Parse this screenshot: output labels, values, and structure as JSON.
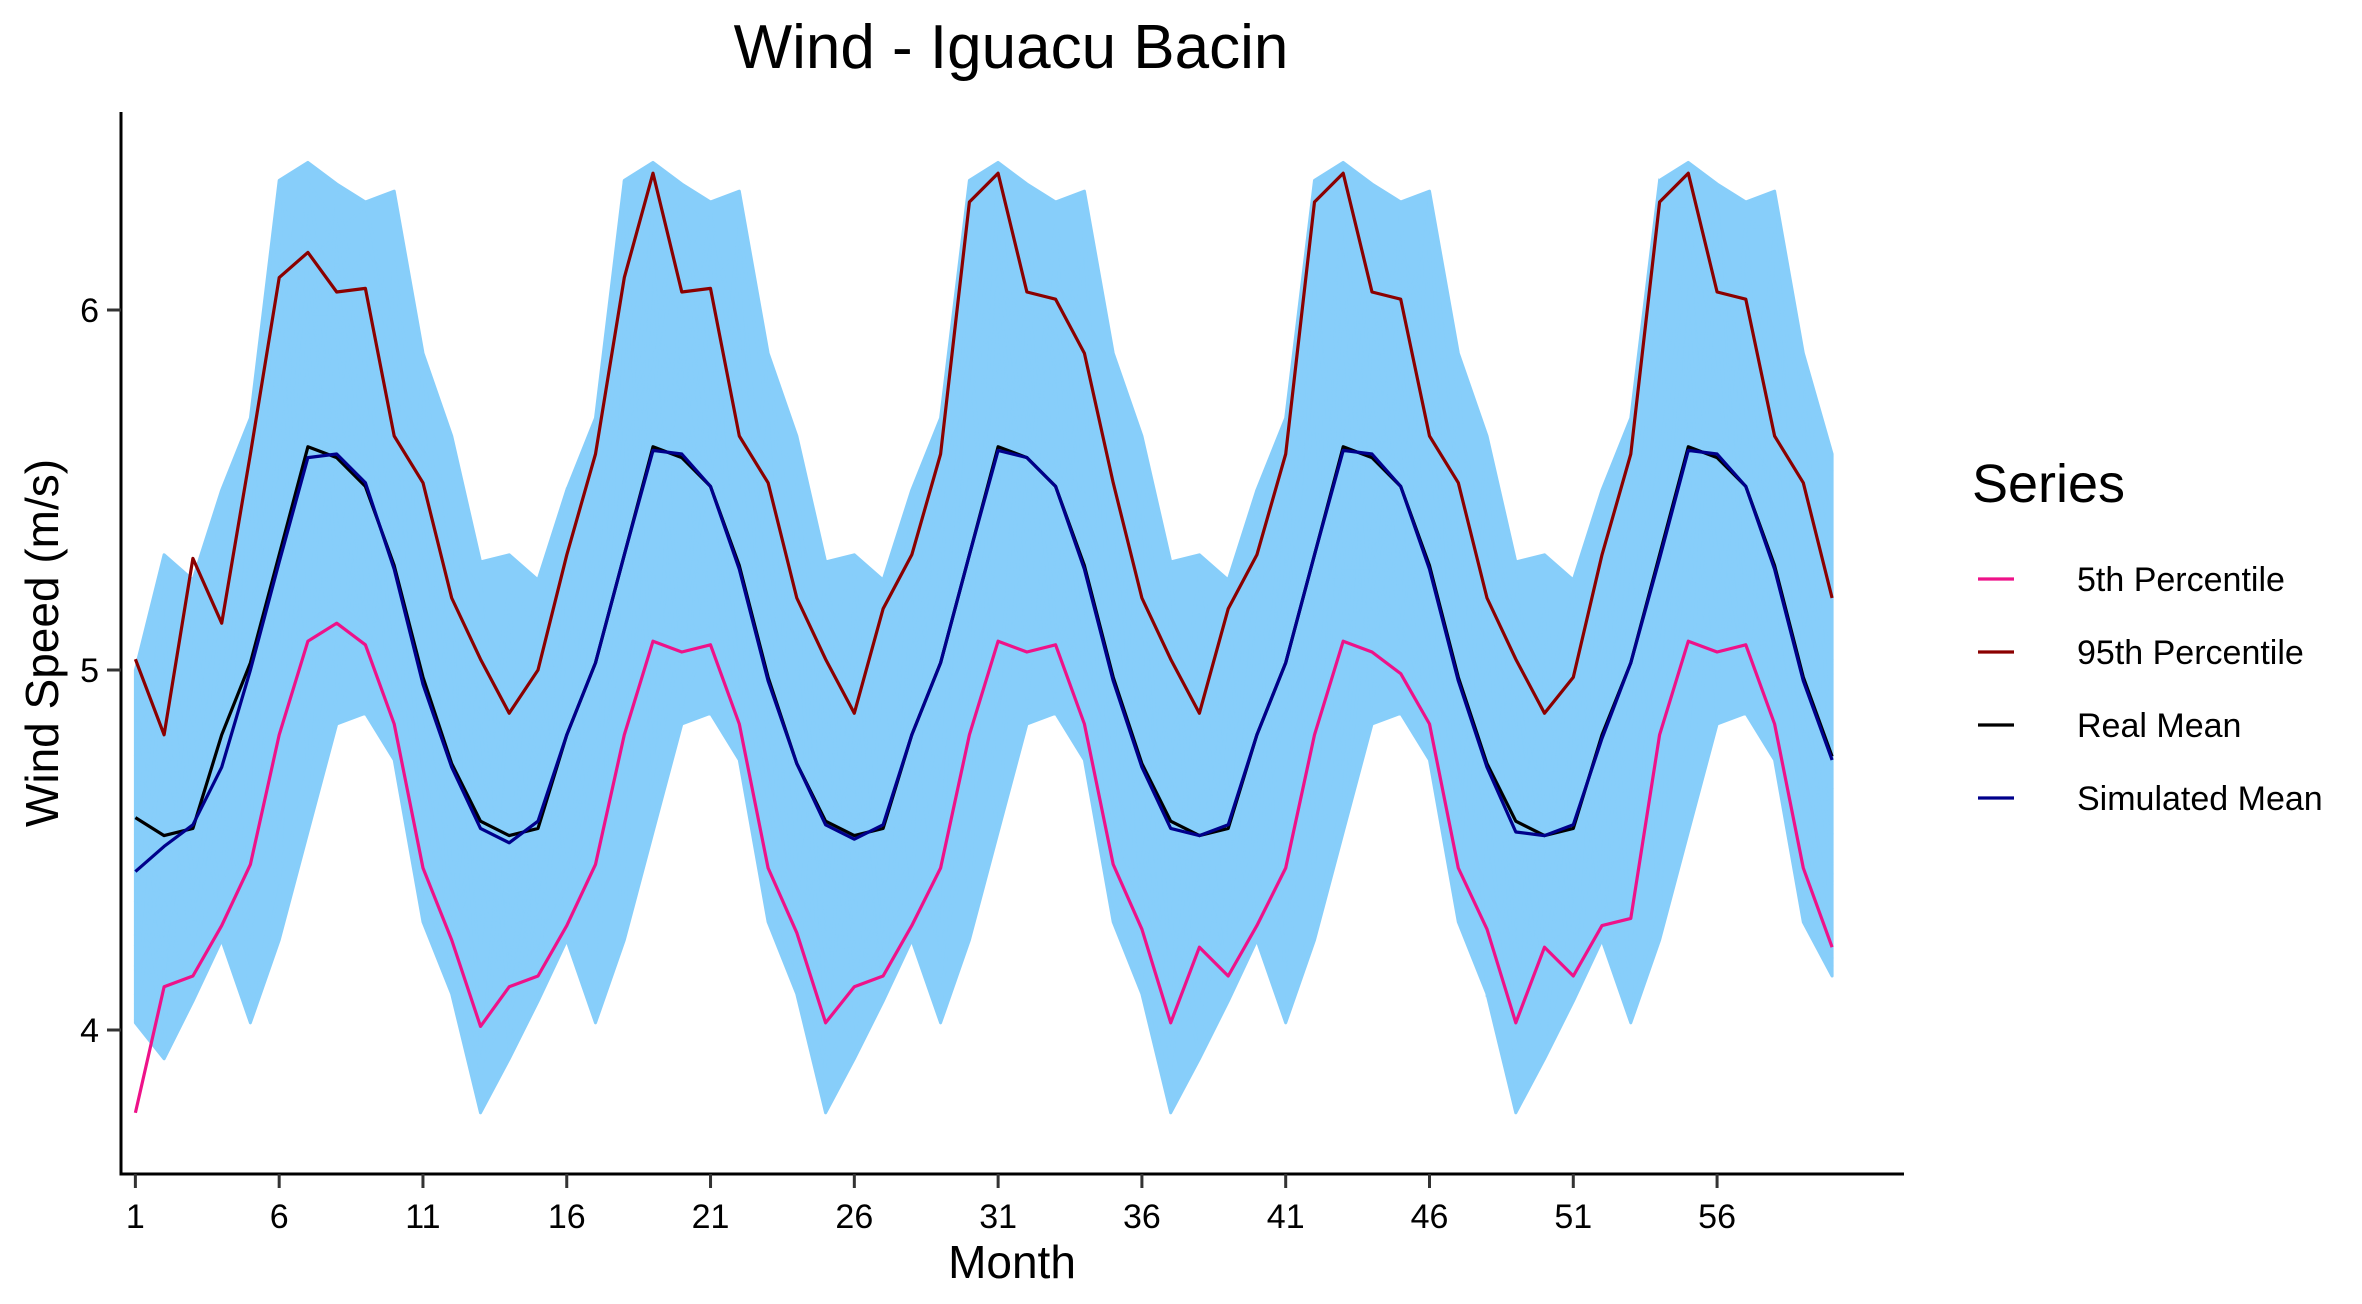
{
  "chart_data": {
    "type": "line",
    "title": "Wind - Iguacu Bacin",
    "xlabel": "Month",
    "ylabel": "Wind Speed (m/s)",
    "xlim": [
      0.5,
      62.5
    ],
    "ylim": [
      3.6,
      6.55
    ],
    "x_ticks": [
      1,
      6,
      11,
      16,
      21,
      26,
      31,
      36,
      41,
      46,
      51,
      56
    ],
    "y_ticks": [
      4,
      5,
      6
    ],
    "grid": false,
    "legend": {
      "title": "Series",
      "position": "right",
      "entries": [
        "5th Percentile",
        "95th Percentile",
        "Real Mean",
        "Simulated Mean"
      ]
    },
    "x": [
      1,
      2,
      3,
      4,
      5,
      6,
      7,
      8,
      9,
      10,
      11,
      12,
      13,
      14,
      15,
      16,
      17,
      18,
      19,
      20,
      21,
      22,
      23,
      24,
      25,
      26,
      27,
      28,
      29,
      30,
      31,
      32,
      33,
      34,
      35,
      36,
      37,
      38,
      39,
      40,
      41,
      42,
      43,
      44,
      45,
      46,
      47,
      48,
      49,
      50,
      51,
      52,
      53,
      54,
      55,
      56,
      57,
      58,
      59,
      60
    ],
    "simulated_band": {
      "color": "#87CEFA",
      "upper": [
        5.0,
        5.32,
        5.25,
        5.5,
        5.7,
        6.36,
        6.41,
        6.35,
        6.3,
        6.33,
        5.88,
        5.65,
        5.3,
        5.32,
        5.25,
        5.5,
        5.7,
        6.36,
        6.41,
        6.35,
        6.3,
        6.33,
        5.88,
        5.65,
        5.3,
        5.32,
        5.25,
        5.5,
        5.7,
        6.36,
        6.41,
        6.35,
        6.3,
        6.33,
        5.88,
        5.65,
        5.3,
        5.32,
        5.25,
        5.5,
        5.7,
        6.36,
        6.41,
        6.35,
        6.3,
        6.33,
        5.88,
        5.65,
        5.3,
        5.32,
        5.25,
        5.5,
        5.7,
        6.36,
        6.41,
        6.35,
        6.3,
        6.33,
        5.88,
        5.6
      ],
      "lower": [
        4.02,
        3.92,
        4.08,
        4.25,
        4.02,
        4.25,
        4.55,
        4.85,
        4.88,
        4.75,
        4.3,
        4.1,
        3.77,
        3.92,
        4.08,
        4.25,
        4.02,
        4.25,
        4.55,
        4.85,
        4.88,
        4.75,
        4.3,
        4.1,
        3.77,
        3.92,
        4.08,
        4.25,
        4.02,
        4.25,
        4.55,
        4.85,
        4.88,
        4.75,
        4.3,
        4.1,
        3.77,
        3.92,
        4.08,
        4.25,
        4.02,
        4.25,
        4.55,
        4.85,
        4.88,
        4.75,
        4.3,
        4.1,
        3.77,
        3.92,
        4.08,
        4.25,
        4.02,
        4.25,
        4.55,
        4.85,
        4.88,
        4.75,
        4.3,
        4.15
      ]
    },
    "series": [
      {
        "name": "5th Percentile",
        "color": "#EE1289",
        "values": [
          3.77,
          4.12,
          4.15,
          4.29,
          4.46,
          4.82,
          5.08,
          5.13,
          5.07,
          4.85,
          4.45,
          4.25,
          4.01,
          4.12,
          4.15,
          4.29,
          4.46,
          4.82,
          5.08,
          5.05,
          5.07,
          4.85,
          4.45,
          4.27,
          4.02,
          4.12,
          4.15,
          4.29,
          4.45,
          4.82,
          5.08,
          5.05,
          5.07,
          4.85,
          4.46,
          4.28,
          4.02,
          4.23,
          4.15,
          4.29,
          4.45,
          4.82,
          5.08,
          5.05,
          4.99,
          4.85,
          4.45,
          4.28,
          4.02,
          4.23,
          4.15,
          4.29,
          4.31,
          4.82,
          5.08,
          5.05,
          5.07,
          4.85,
          4.45,
          4.23
        ]
      },
      {
        "name": "95th Percentile",
        "color": "#8B0000",
        "values": [
          5.03,
          4.82,
          5.31,
          5.13,
          5.6,
          6.09,
          6.16,
          6.05,
          6.06,
          5.65,
          5.52,
          5.2,
          5.03,
          4.88,
          5.0,
          5.32,
          5.6,
          6.09,
          6.38,
          6.05,
          6.06,
          5.65,
          5.52,
          5.2,
          5.03,
          4.88,
          5.17,
          5.32,
          5.6,
          6.3,
          6.38,
          6.05,
          6.03,
          5.88,
          5.52,
          5.2,
          5.03,
          4.88,
          5.17,
          5.32,
          5.6,
          6.3,
          6.38,
          6.05,
          6.03,
          5.65,
          5.52,
          5.2,
          5.03,
          4.88,
          4.98,
          5.32,
          5.6,
          6.3,
          6.38,
          6.05,
          6.03,
          5.65,
          5.52,
          5.2
        ]
      },
      {
        "name": "Real Mean",
        "color": "#000000",
        "values": [
          4.59,
          4.54,
          4.56,
          4.82,
          5.02,
          5.32,
          5.62,
          5.59,
          5.51,
          5.29,
          4.98,
          4.74,
          4.58,
          4.54,
          4.56,
          4.82,
          5.02,
          5.32,
          5.62,
          5.59,
          5.51,
          5.29,
          4.98,
          4.74,
          4.58,
          4.54,
          4.56,
          4.82,
          5.02,
          5.32,
          5.62,
          5.59,
          5.51,
          5.29,
          4.98,
          4.74,
          4.58,
          4.54,
          4.56,
          4.82,
          5.02,
          5.32,
          5.62,
          5.59,
          5.51,
          5.29,
          4.98,
          4.74,
          4.58,
          4.54,
          4.56,
          4.82,
          5.02,
          5.32,
          5.62,
          5.59,
          5.51,
          5.29,
          4.98,
          4.76
        ]
      },
      {
        "name": "Simulated Mean",
        "color": "#00008B",
        "values": [
          4.44,
          4.51,
          4.57,
          4.73,
          5.0,
          5.3,
          5.59,
          5.6,
          5.52,
          5.28,
          4.96,
          4.73,
          4.56,
          4.52,
          4.58,
          4.82,
          5.02,
          5.32,
          5.61,
          5.6,
          5.51,
          5.28,
          4.97,
          4.74,
          4.57,
          4.53,
          4.57,
          4.82,
          5.02,
          5.32,
          5.61,
          5.59,
          5.51,
          5.28,
          4.97,
          4.73,
          4.56,
          4.54,
          4.57,
          4.82,
          5.02,
          5.32,
          5.61,
          5.6,
          5.51,
          5.28,
          4.97,
          4.73,
          4.55,
          4.54,
          4.57,
          4.81,
          5.02,
          5.31,
          5.61,
          5.6,
          5.51,
          5.28,
          4.97,
          4.75
        ]
      }
    ]
  }
}
